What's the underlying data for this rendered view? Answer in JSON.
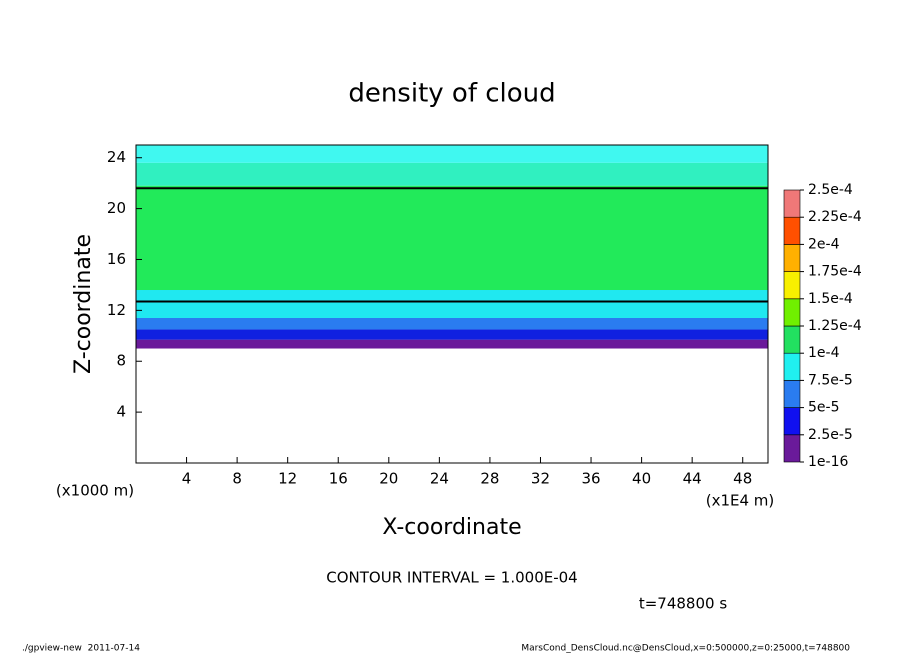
{
  "chart_data": {
    "type": "contour",
    "title": "density of cloud",
    "x_label": "X-coordinate",
    "y_label": "Z-coordinate",
    "x_unit_label": "(x1E4 m)",
    "y_unit_label": "(x1000 m)",
    "xlim": [
      0,
      50
    ],
    "ylim": [
      0,
      25
    ],
    "xticks": [
      4,
      8,
      12,
      16,
      20,
      24,
      28,
      32,
      36,
      40,
      44,
      48
    ],
    "yticks": [
      4,
      8,
      12,
      16,
      20,
      24
    ],
    "layers": [
      {
        "zlim": [
          9,
          9.7
        ],
        "color": "#6a1a9a"
      },
      {
        "zlim": [
          9.7,
          10.5
        ],
        "color": "#1020e0"
      },
      {
        "zlim": [
          10.5,
          11.4
        ],
        "color": "#2a7cf0"
      },
      {
        "zlim": [
          11.4,
          13.6
        ],
        "color": "#20e8f0"
      },
      {
        "zlim": [
          13.6,
          21.8
        ],
        "color": "#22ea5a"
      },
      {
        "zlim": [
          21.8,
          23.6
        ],
        "color": "#30f0c0"
      },
      {
        "zlim": [
          23.6,
          25
        ],
        "color": "#40f8f0"
      }
    ],
    "contour_lines": [
      12.7,
      21.6
    ],
    "colorbar": {
      "ticks": [
        {
          "value": 1e-16,
          "label": "1e-16"
        },
        {
          "value": 2.5e-05,
          "label": "2.5e-5"
        },
        {
          "value": 5e-05,
          "label": "5e-5"
        },
        {
          "value": 7.5e-05,
          "label": "7.5e-5"
        },
        {
          "value": 0.0001,
          "label": "1e-4"
        },
        {
          "value": 0.000125,
          "label": "1.25e-4"
        },
        {
          "value": 0.00015,
          "label": "1.5e-4"
        },
        {
          "value": 0.000175,
          "label": "1.75e-4"
        },
        {
          "value": 0.0002,
          "label": "2e-4"
        },
        {
          "value": 0.000225,
          "label": "2.25e-4"
        },
        {
          "value": 0.00025,
          "label": "2.5e-4"
        }
      ],
      "colors": [
        "#6a1a9a",
        "#1010f0",
        "#2a7cf0",
        "#20f0f0",
        "#22e060",
        "#70f000",
        "#f8f000",
        "#ffb000",
        "#ff5000",
        "#f07878"
      ]
    },
    "contour_interval": "CONTOUR INTERVAL = 1.000E-04",
    "time_label": "t=748800 s",
    "footer_left": "./gpview-new  2011-07-14",
    "footer_right": "MarsCond_DensCloud.nc@DensCloud,x=0:500000,z=0:25000,t=748800"
  }
}
